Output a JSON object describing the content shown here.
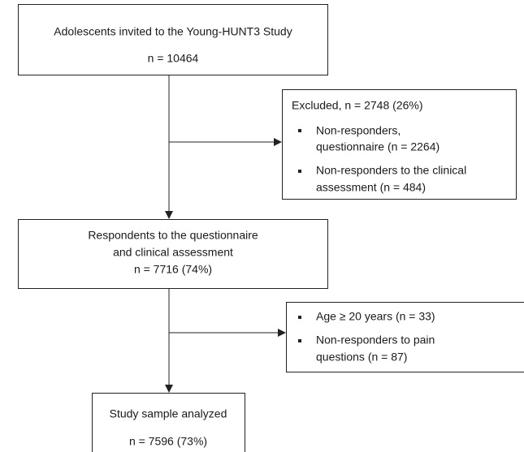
{
  "nodes": [
    {
      "lines": [
        "Adolescents invited to the Young-HUNT3 Study",
        "n = 10464"
      ]
    },
    {
      "title": "Excluded, n = 2748 (26%)",
      "items": [
        [
          "Non-responders,",
          "questionnaire (n = 2264)"
        ],
        [
          "Non-responders to the clinical",
          "assessment (n = 484)"
        ]
      ]
    },
    {
      "lines": [
        "Respondents to the questionnaire",
        "and clinical assessment",
        "n = 7716 (74%)"
      ]
    },
    {
      "items": [
        [
          "Age ≥ 20 years (n = 33)"
        ],
        [
          "Non-responders to pain",
          "questions (n = 87)"
        ]
      ]
    },
    {
      "lines": [
        "Study sample analyzed",
        "n = 7596 (73%)"
      ]
    }
  ]
}
